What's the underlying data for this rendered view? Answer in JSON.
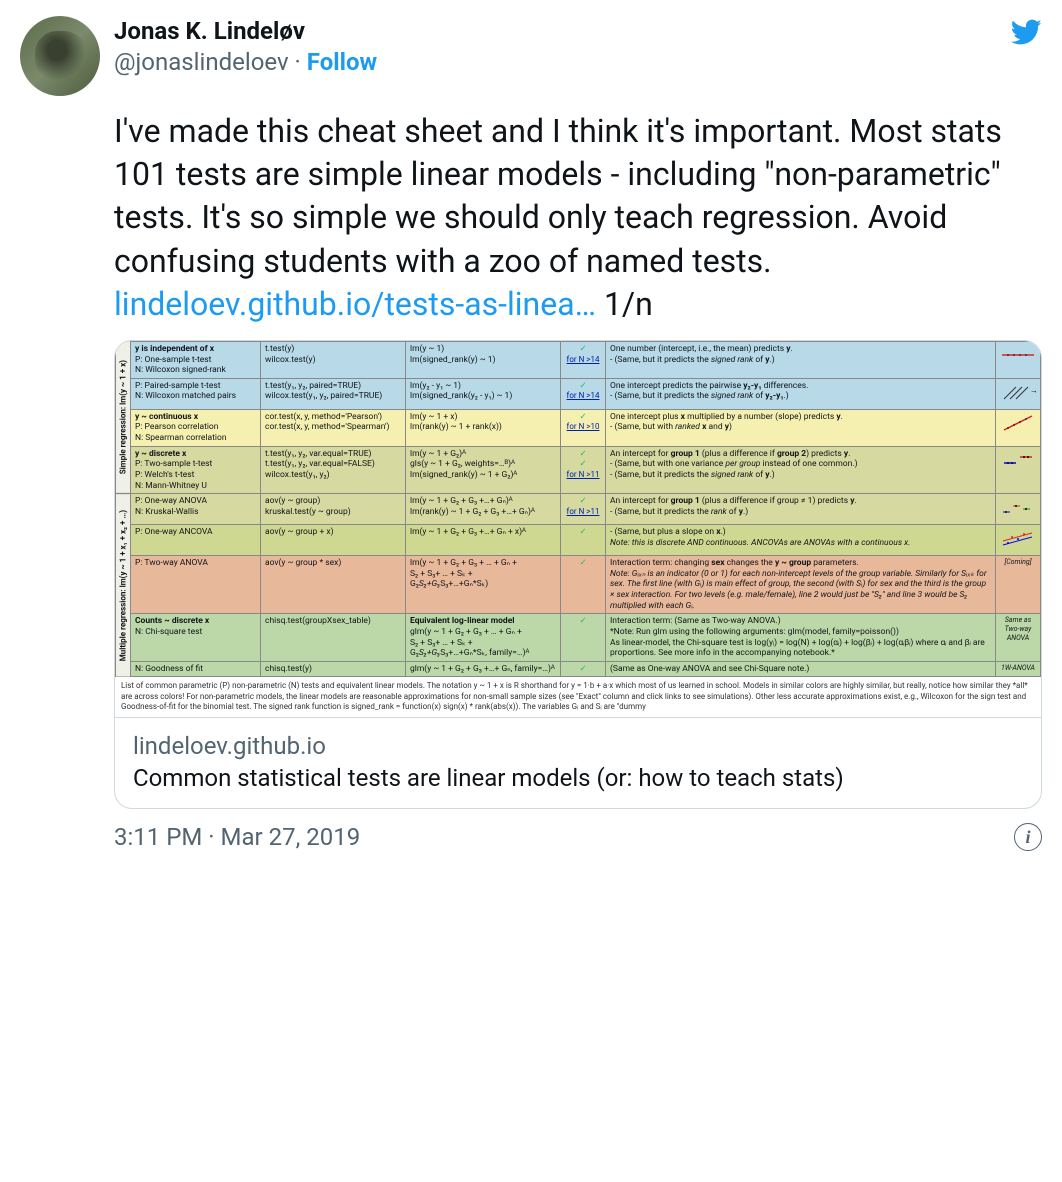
{
  "user": {
    "display_name": "Jonas K. Lindeløv",
    "handle": "@jonaslindeloev",
    "follow": "Follow",
    "separator": " · "
  },
  "tweet": {
    "body": "I've made this cheat sheet and I think it's important. Most stats 101 tests are simple linear models - including \"non-parametric\" tests. It's so simple we should only teach regression. Avoid confusing students with a zoo of named tests.",
    "link_text": "lindeloev.github.io/tests-as-linea…",
    "suffix": " 1/n"
  },
  "card": {
    "domain": "lindeloev.github.io",
    "title": "Common statistical tests are linear models (or: how to teach stats)"
  },
  "timestamp": "3:11 PM · Mar 27, 2019",
  "sheet": {
    "vlabel1": "Simple regression: lm(y ~ 1 + x)",
    "vlabel2": "Multiple regression: lm(y ~ 1 + x₁ + x₂ + …)",
    "colors": {
      "blue": "#b7d9e8",
      "yellow": "#f6f0b0",
      "khaki": "#d6d9a0",
      "olive": "#cfd890",
      "coral": "#e8b89a",
      "green": "#bcd8a8",
      "header_border": "#888"
    },
    "rows": [
      {
        "bg": "blue",
        "c1": "**y is independent of x**\nP: One-sample t-test\nN: Wilcoxon signed-rank",
        "c2": "t.test(y)\nwilcox.test(y)",
        "c3": "lm(y ~ 1)\nlm(signed_rank(y) ~ 1)",
        "c4": "✓",
        "c4link": "for N >14",
        "c5": "One number (intercept, i.e., the mean) predicts **y**.\n- (Same, but it predicts the *signed rank* of **y**.)",
        "icon": "intercept"
      },
      {
        "bg": "blue",
        "c1": "P: Paired-sample t-test\nN: Wilcoxon matched pairs",
        "c2": "t.test(y₁, y₂, paired=TRUE)\nwilcox.test(y₁, y₂, paired=TRUE)",
        "c3": "lm(y₂ - y₁ ~ 1)\nlm(signed_rank(y₂ - y₁) ~ 1)",
        "c4": "✓",
        "c4link": "for N >14",
        "c5": "One intercept predicts the pairwise **y₂-y₁** differences.\n- (Same, but it predicts the *signed rank* of **y₂-y₁**.)",
        "icon": "paired"
      },
      {
        "bg": "yellow",
        "c1": "**y ~ continuous x**\nP: Pearson correlation\nN: Spearman correlation",
        "c2": "cor.test(x, y, method='Pearson')\ncor.test(x, y, method='Spearman')",
        "c3": "lm(y ~ 1 + x)\nlm(rank(y) ~ 1 + rank(x))",
        "c4": "✓",
        "c4link": "for N >10",
        "c5": "One intercept plus **x** multiplied by a number (slope) predicts **y**.\n- (Same, but with *ranked* **x** and **y**)",
        "icon": "slope"
      },
      {
        "bg": "khaki",
        "c1": "**y ~ discrete x**\nP: Two-sample t-test\nP: Welch's t-test\nN: Mann-Whitney U",
        "c2": "t.test(y₁, y₂, var.equal=TRUE)\nt.test(y₁, y₂, var.equal=FALSE)\nwilcox.test(y₁, y₂)",
        "c3": "lm(y ~ 1 + G₂)ᴬ\ngls(y ~ 1 + G₂, weights=…ᴮ)ᴬ\nlm(signed_rank(y) ~ 1 + G₂)ᴬ",
        "c4": "✓\n✓",
        "c4link": "for N >11",
        "c5": "An intercept for **group 1** (plus a difference if **group 2**) predicts **y**.\n- (Same, but with one variance *per group* instead of one common.)\n- (Same, but it predicts the *signed rank* of **y**.)",
        "icon": "two-group"
      },
      {
        "bg": "khaki",
        "c1": "P: One-way ANOVA\nN: Kruskal-Wallis",
        "c2": "aov(y ~ group)\nkruskal.test(y ~ group)",
        "c3": "lm(y ~ 1 + G₂ + G₃ +…+ Gₙ)ᴬ\nlm(rank(y) ~ 1 + G₂ + G₃ +…+ Gₙ)ᴬ",
        "c4": "✓",
        "c4link": "for N >11",
        "c5": "An intercept for **group 1** (plus a difference if group ≠ 1) predicts **y**.\n- (Same, but it predicts the *rank* of **y**.)",
        "icon": "anova"
      },
      {
        "bg": "olive",
        "c1": "P: One-way ANCOVA",
        "c2": "aov(y ~ group + x)",
        "c3": "lm(y ~ 1 + G₂ + G₃ +…+ Gₙ + x)ᴬ",
        "c4": "✓",
        "c4link": "",
        "c5": "- (Same, but plus a slope on **x**.)\n*Note: this is discrete AND continuous. ANCOVAs are ANOVAs with a continuous x.*",
        "icon": "ancova"
      },
      {
        "bg": "coral",
        "c1": "P: Two-way ANOVA",
        "c2": "aov(y ~ group * sex)",
        "c3": "lm(y ~ 1 + G₂ + G₃ + … + Gₙ +\n  S₂ + S₃+ … + Sₖ +\n  G₂*S₂+G₃*S₃+…+Gₙ*Sₖ)",
        "c4": "✓",
        "c4link": "",
        "c5": "Interaction term: changing **sex** changes the **y ~ group** parameters.\n*Note: G*ᵢ*ₓₙ is an indicator (0 or 1) for each non-intercept levels of the group variable. Similarly for S*ᵢ*ₓₖ for sex. The first line (with G*ᵢ*) is main effect of group, the second (with S*ᵢ*) for sex and the third is the group × sex interaction. For two levels (e.g. male/female), line 2 would just be \"S₂\" and line 3 would be S₂ multiplied with each G*ᵢ*.*",
        "icon_text": "[Coming]"
      },
      {
        "bg": "green",
        "c1": "**Counts ~ discrete x**\nN: Chi-square test",
        "c2": "chisq.test(groupXsex_table)",
        "c3": "**Equivalent log-linear model**\nglm(y ~ 1 + G₂ + G₃ + … + Gₙ +\n  S₂ + S₃+ … + Sₖ +\n  G₂*S₂+G₃*S₃+…+Gₙ*Sₖ, family=…)ᴬ",
        "c4": "✓",
        "c4link": "",
        "c5": "Interaction term: (Same as Two-way ANOVA.)\n*Note: Run glm using the following arguments: glm(model, family=poisson())\nAs linear-model, the Chi-square test is log(y*ᵢ*) = log(N) + log(α*ᵢ*) + log(β*ᵢ*) + log(α*ᵢ*β*ᵢ*) where α*ᵢ* and β*ᵢ* are proportions. See more info in the accompanying notebook.*",
        "icon_text": "Same as\nTwo-way\nANOVA"
      },
      {
        "bg": "green",
        "c1": "N: Goodness of fit",
        "c2": "chisq.test(y)",
        "c3": "glm(y ~ 1 + G₂ + G₃ +…+ Gₙ, family=…)ᴬ",
        "c4": "✓",
        "c4link": "",
        "c5": "(Same as One-way ANOVA and see Chi-Square note.)",
        "icon_text": "1W-ANOVA"
      }
    ],
    "caption": "List of common parametric (P) non-parametric (N) tests and equivalent linear models. The notation y ~ 1 + x is R shorthand for y = 1·b + a·x which most of us learned in school. Models in similar colors are highly similar, but really, notice how similar they *all* are across colors! For non-parametric models, the linear models are reasonable approximations for non-small sample sizes (see \"Exact\" column and click links to see simulations). Other less accurate approximations exist, e.g., Wilcoxon for the sign test and Goodness-of-fit for the binomial test. The signed rank function is signed_rank = function(x) sign(x) * rank(abs(x)). The variables Gᵢ and Sᵢ are \"dummy"
  }
}
